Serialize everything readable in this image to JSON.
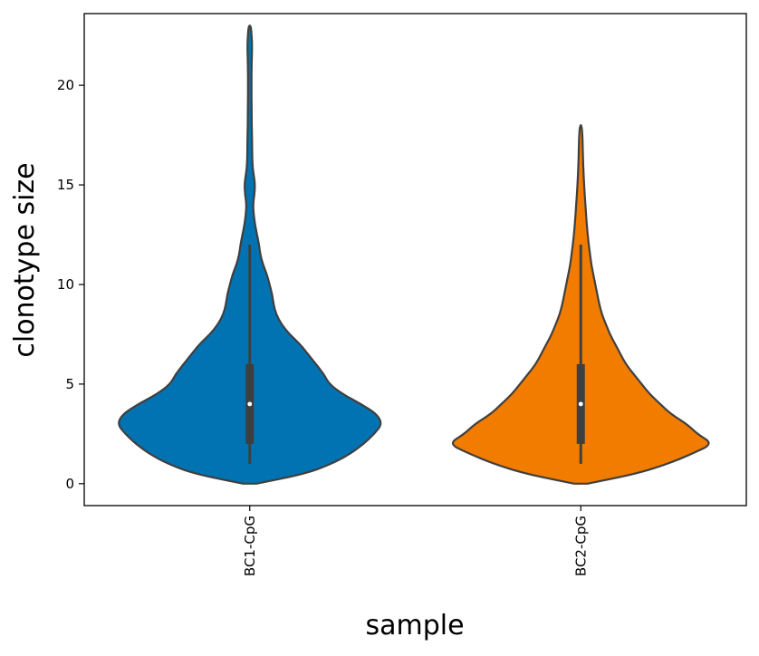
{
  "chart_data": {
    "type": "violin",
    "xlabel": "sample",
    "ylabel": "clonotype size",
    "ylim": [
      -1.1,
      23.6
    ],
    "yticks": [
      0,
      5,
      10,
      15,
      20
    ],
    "grid": false,
    "legend": "none",
    "series": [
      {
        "category": "BC1-CpG",
        "color": "#0173b2",
        "box": {
          "whisker_low": 1,
          "q1": 2,
          "median": 4,
          "q3": 6,
          "whisker_high": 12
        },
        "density_profile": [
          [
            0,
            0.05
          ],
          [
            0.5,
            0.42
          ],
          [
            1,
            0.62
          ],
          [
            1.5,
            0.76
          ],
          [
            2,
            0.86
          ],
          [
            2.5,
            0.94
          ],
          [
            3,
            1.0
          ],
          [
            3.5,
            0.96
          ],
          [
            4,
            0.84
          ],
          [
            4.5,
            0.7
          ],
          [
            5,
            0.6
          ],
          [
            5.5,
            0.56
          ],
          [
            6,
            0.5
          ],
          [
            6.5,
            0.44
          ],
          [
            7,
            0.38
          ],
          [
            7.5,
            0.3
          ],
          [
            8,
            0.24
          ],
          [
            8.5,
            0.2
          ],
          [
            9,
            0.18
          ],
          [
            9.5,
            0.17
          ],
          [
            10,
            0.15
          ],
          [
            10.5,
            0.13
          ],
          [
            11,
            0.1
          ],
          [
            11.5,
            0.08
          ],
          [
            12,
            0.07
          ],
          [
            12.5,
            0.055
          ],
          [
            13,
            0.04
          ],
          [
            13.5,
            0.03
          ],
          [
            14,
            0.025
          ],
          [
            14.5,
            0.035
          ],
          [
            15,
            0.04
          ],
          [
            15.5,
            0.03
          ],
          [
            16,
            0.02
          ],
          [
            17,
            0.018
          ],
          [
            18,
            0.015
          ],
          [
            19,
            0.014
          ],
          [
            20,
            0.013
          ],
          [
            21,
            0.014
          ],
          [
            22,
            0.018
          ],
          [
            22.5,
            0.014
          ],
          [
            23,
            0.008
          ]
        ]
      },
      {
        "category": "BC2-CpG",
        "color": "#f17c00",
        "box": {
          "whisker_low": 1,
          "q1": 2,
          "median": 4,
          "q3": 6,
          "whisker_high": 12
        },
        "density_profile": [
          [
            0,
            0.05
          ],
          [
            0.5,
            0.42
          ],
          [
            1,
            0.66
          ],
          [
            1.5,
            0.84
          ],
          [
            2,
            1.0
          ],
          [
            2.5,
            0.88
          ],
          [
            3,
            0.8
          ],
          [
            3.5,
            0.68
          ],
          [
            4,
            0.6
          ],
          [
            4.5,
            0.52
          ],
          [
            5,
            0.46
          ],
          [
            5.5,
            0.4
          ],
          [
            6,
            0.34
          ],
          [
            6.5,
            0.3
          ],
          [
            7,
            0.26
          ],
          [
            7.5,
            0.22
          ],
          [
            8,
            0.19
          ],
          [
            8.5,
            0.16
          ],
          [
            9,
            0.14
          ],
          [
            9.5,
            0.125
          ],
          [
            10,
            0.11
          ],
          [
            10.5,
            0.095
          ],
          [
            11,
            0.08
          ],
          [
            11.5,
            0.07
          ],
          [
            12,
            0.06
          ],
          [
            13,
            0.045
          ],
          [
            14,
            0.035
          ],
          [
            15,
            0.025
          ],
          [
            16,
            0.018
          ],
          [
            17,
            0.014
          ],
          [
            17.5,
            0.012
          ],
          [
            18,
            0.006
          ]
        ]
      }
    ]
  }
}
